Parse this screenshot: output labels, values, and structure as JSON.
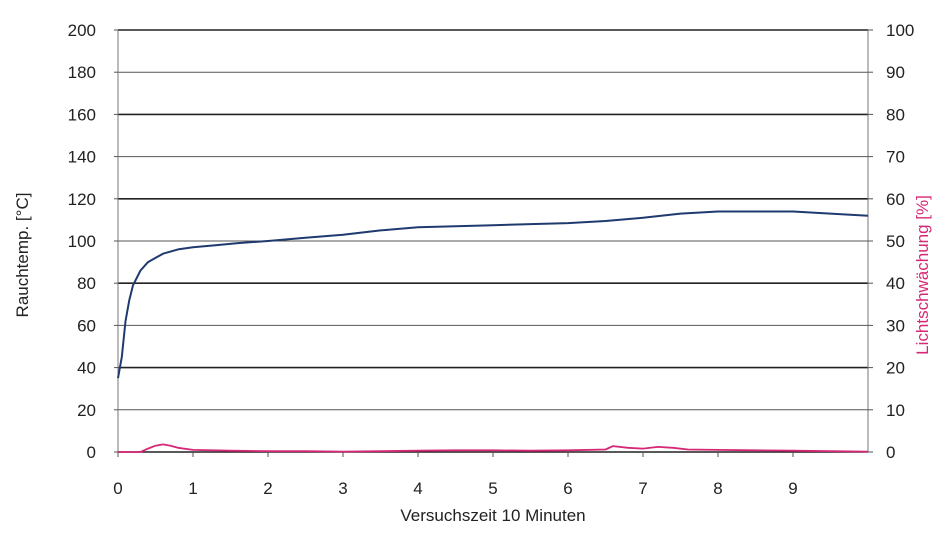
{
  "chart_data": {
    "type": "line",
    "title": "",
    "xlabel": "Versuchszeit 10 Minuten",
    "ylabel": "Rauchtemp. [°C]",
    "y2label": "Lichtschwächung [%]",
    "x_ticks": [
      "0",
      "1",
      "2",
      "3",
      "4",
      "5",
      "6",
      "7",
      "8",
      "9"
    ],
    "y_ticks": [
      "0",
      "20",
      "40",
      "60",
      "80",
      "100",
      "120",
      "140",
      "160",
      "180",
      "200"
    ],
    "y2_ticks": [
      "0",
      "10",
      "20",
      "30",
      "40",
      "50",
      "60",
      "70",
      "80",
      "90",
      "100"
    ],
    "xlim": [
      0,
      10
    ],
    "ylim": [
      0,
      200
    ],
    "y2lim": [
      0,
      100
    ],
    "grid": true,
    "legend": "none",
    "colors": {
      "temperature": "#1f3a6e",
      "light": "#d62876",
      "ylabel2": "#d62876"
    },
    "series": [
      {
        "axis": "left",
        "color_key": "temperature",
        "x": [
          0,
          0.05,
          0.1,
          0.15,
          0.2,
          0.3,
          0.4,
          0.5,
          0.6,
          0.8,
          1.0,
          1.3,
          1.6,
          2.0,
          2.5,
          3.0,
          3.5,
          4.0,
          4.5,
          5.0,
          5.5,
          6.0,
          6.5,
          7.0,
          7.5,
          8.0,
          8.5,
          9.0,
          9.5,
          10.0
        ],
        "y": [
          35,
          45,
          62,
          72,
          79,
          86,
          90,
          92,
          94,
          96,
          97,
          98,
          99,
          100,
          101.5,
          103,
          105,
          106.5,
          107,
          107.5,
          108,
          108.5,
          109.5,
          111,
          113,
          114,
          114,
          114,
          113,
          112
        ]
      },
      {
        "axis": "right",
        "color_key": "light",
        "x": [
          0,
          0.3,
          0.4,
          0.5,
          0.6,
          0.7,
          0.8,
          1.0,
          1.5,
          2.0,
          2.5,
          3.0,
          3.5,
          4.0,
          4.5,
          5.0,
          5.5,
          6.0,
          6.5,
          6.6,
          6.8,
          7.0,
          7.2,
          7.4,
          7.6,
          8.0,
          8.5,
          9.0,
          9.5,
          10.0
        ],
        "y": [
          0,
          0,
          0.8,
          1.5,
          1.8,
          1.5,
          1.0,
          0.5,
          0.3,
          0.2,
          0.2,
          0.1,
          0.2,
          0.3,
          0.4,
          0.4,
          0.3,
          0.4,
          0.6,
          1.4,
          1.0,
          0.8,
          1.2,
          1.0,
          0.6,
          0.5,
          0.4,
          0.3,
          0.2,
          0.1
        ]
      }
    ]
  }
}
